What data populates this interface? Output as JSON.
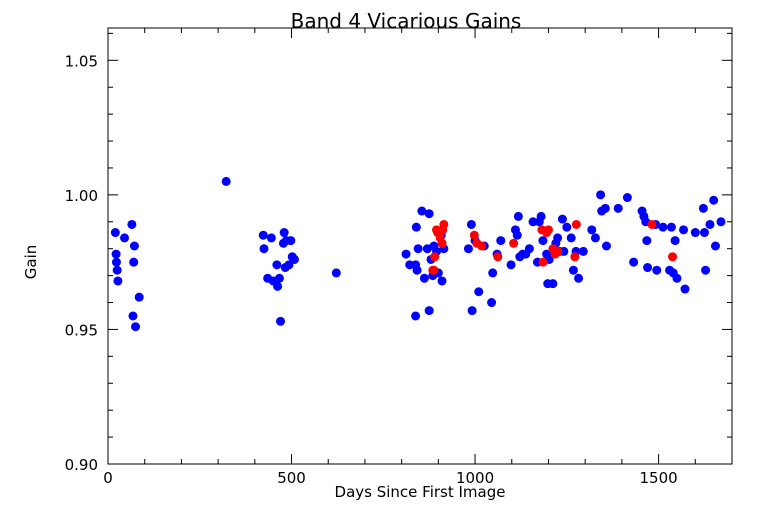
{
  "chart_data": {
    "type": "scatter",
    "title": "Band 4 Vicarious Gains",
    "xlabel": "Days Since First Image",
    "ylabel": "Gain",
    "xlim": [
      0,
      1700
    ],
    "ylim": [
      0.9,
      1.062
    ],
    "x_ticks": [
      "0",
      "500",
      "1000",
      "1500"
    ],
    "y_ticks": [
      "0.90",
      "0.95",
      "1.00",
      "1.05"
    ],
    "x_tick_values": [
      0,
      500,
      1000,
      1500
    ],
    "y_tick_values": [
      0.9,
      0.95,
      1.0,
      1.05
    ],
    "grid": false,
    "series": [
      {
        "color": "#0000ff",
        "points": [
          [
            20,
            0.986
          ],
          [
            22,
            0.978
          ],
          [
            23,
            0.975
          ],
          [
            25,
            0.972
          ],
          [
            27,
            0.968
          ],
          [
            45,
            0.984
          ],
          [
            65,
            0.989
          ],
          [
            68,
            0.955
          ],
          [
            70,
            0.975
          ],
          [
            72,
            0.981
          ],
          [
            75,
            0.951
          ],
          [
            85,
            0.962
          ],
          [
            322,
            1.005
          ],
          [
            423,
            0.985
          ],
          [
            425,
            0.98
          ],
          [
            435,
            0.969
          ],
          [
            445,
            0.984
          ],
          [
            450,
            0.968
          ],
          [
            460,
            0.974
          ],
          [
            462,
            0.966
          ],
          [
            467,
            0.969
          ],
          [
            470,
            0.953
          ],
          [
            478,
            0.982
          ],
          [
            480,
            0.986
          ],
          [
            483,
            0.973
          ],
          [
            486,
            0.983
          ],
          [
            493,
            0.974
          ],
          [
            498,
            0.983
          ],
          [
            502,
            0.977
          ],
          [
            508,
            0.976
          ],
          [
            622,
            0.971
          ],
          [
            812,
            0.978
          ],
          [
            822,
            0.974
          ],
          [
            838,
            0.955
          ],
          [
            838,
            0.974
          ],
          [
            840,
            0.988
          ],
          [
            842,
            0.972
          ],
          [
            845,
            0.98
          ],
          [
            855,
            0.994
          ],
          [
            862,
            0.969
          ],
          [
            870,
            0.98
          ],
          [
            875,
            0.993
          ],
          [
            875,
            0.957
          ],
          [
            880,
            0.976
          ],
          [
            885,
            0.97
          ],
          [
            888,
            0.981
          ],
          [
            895,
            0.979
          ],
          [
            900,
            0.971
          ],
          [
            908,
            0.985
          ],
          [
            910,
            0.968
          ],
          [
            915,
            0.98
          ],
          [
            982,
            0.98
          ],
          [
            990,
            0.989
          ],
          [
            992,
            0.957
          ],
          [
            1000,
            0.983
          ],
          [
            1010,
            0.964
          ],
          [
            1025,
            0.981
          ],
          [
            1045,
            0.96
          ],
          [
            1048,
            0.971
          ],
          [
            1060,
            0.978
          ],
          [
            1070,
            0.983
          ],
          [
            1098,
            0.974
          ],
          [
            1110,
            0.987
          ],
          [
            1115,
            0.985
          ],
          [
            1118,
            0.992
          ],
          [
            1122,
            0.977
          ],
          [
            1130,
            0.978
          ],
          [
            1138,
            0.978
          ],
          [
            1148,
            0.98
          ],
          [
            1158,
            0.99
          ],
          [
            1170,
            0.975
          ],
          [
            1175,
            0.99
          ],
          [
            1180,
            0.992
          ],
          [
            1185,
            0.983
          ],
          [
            1195,
            0.978
          ],
          [
            1198,
            0.967
          ],
          [
            1202,
            0.976
          ],
          [
            1212,
            0.967
          ],
          [
            1220,
            0.982
          ],
          [
            1225,
            0.984
          ],
          [
            1230,
            0.979
          ],
          [
            1238,
            0.991
          ],
          [
            1242,
            0.979
          ],
          [
            1250,
            0.988
          ],
          [
            1262,
            0.984
          ],
          [
            1268,
            0.972
          ],
          [
            1275,
            0.979
          ],
          [
            1282,
            0.969
          ],
          [
            1295,
            0.979
          ],
          [
            1318,
            0.987
          ],
          [
            1328,
            0.984
          ],
          [
            1342,
            1.0
          ],
          [
            1345,
            0.994
          ],
          [
            1355,
            0.995
          ],
          [
            1358,
            0.981
          ],
          [
            1390,
            0.995
          ],
          [
            1415,
            0.999
          ],
          [
            1432,
            0.975
          ],
          [
            1455,
            0.994
          ],
          [
            1460,
            0.992
          ],
          [
            1465,
            0.99
          ],
          [
            1468,
            0.983
          ],
          [
            1470,
            0.973
          ],
          [
            1492,
            0.989
          ],
          [
            1495,
            0.972
          ],
          [
            1512,
            0.988
          ],
          [
            1530,
            0.972
          ],
          [
            1535,
            0.988
          ],
          [
            1540,
            0.971
          ],
          [
            1545,
            0.983
          ],
          [
            1550,
            0.969
          ],
          [
            1568,
            0.987
          ],
          [
            1572,
            0.965
          ],
          [
            1600,
            0.986
          ],
          [
            1622,
            0.995
          ],
          [
            1625,
            0.986
          ],
          [
            1628,
            0.972
          ],
          [
            1640,
            0.989
          ],
          [
            1650,
            0.998
          ],
          [
            1655,
            0.981
          ],
          [
            1670,
            0.99
          ]
        ]
      },
      {
        "color": "#ff0000",
        "points": [
          [
            885,
            0.972
          ],
          [
            888,
            0.972
          ],
          [
            890,
            0.977
          ],
          [
            895,
            0.987
          ],
          [
            898,
            0.986
          ],
          [
            905,
            0.984
          ],
          [
            910,
            0.982
          ],
          [
            912,
            0.987
          ],
          [
            915,
            0.989
          ],
          [
            998,
            0.985
          ],
          [
            1005,
            0.982
          ],
          [
            1018,
            0.981
          ],
          [
            1062,
            0.977
          ],
          [
            1105,
            0.982
          ],
          [
            1182,
            0.987
          ],
          [
            1185,
            0.975
          ],
          [
            1195,
            0.986
          ],
          [
            1200,
            0.987
          ],
          [
            1212,
            0.98
          ],
          [
            1218,
            0.978
          ],
          [
            1225,
            0.979
          ],
          [
            1272,
            0.977
          ],
          [
            1276,
            0.989
          ],
          [
            1482,
            0.989
          ],
          [
            1538,
            0.977
          ]
        ]
      }
    ]
  }
}
